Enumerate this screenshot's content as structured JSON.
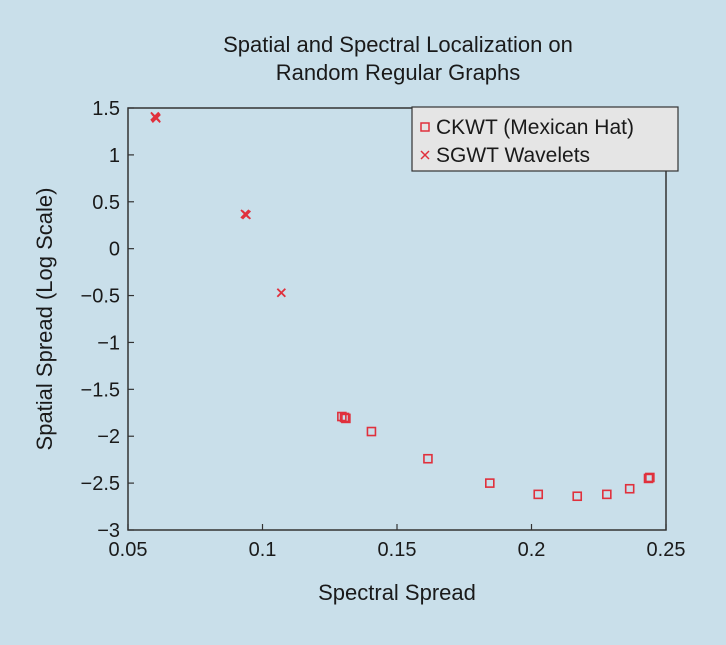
{
  "chart_data": {
    "type": "scatter",
    "title": [
      "Spatial and Spectral Localization on",
      "Random Regular Graphs"
    ],
    "xlabel": "Spectral Spread",
    "ylabel": "Spatial Spread (Log Scale)",
    "xlim": [
      0.05,
      0.25
    ],
    "ylim": [
      -3,
      1.5
    ],
    "x_ticks": [
      "0.05",
      "0.1",
      "0.15",
      "0.2",
      "0.25"
    ],
    "y_ticks": [
      "1.5",
      "1",
      "0.5",
      "0",
      "−0.5",
      "−1",
      "−1.5",
      "−2",
      "−2.5",
      "−3"
    ],
    "grid": false,
    "legend_position": "top-right",
    "series": [
      {
        "name": "CKWT (Mexican Hat)",
        "marker": "square",
        "color": "#e0303c",
        "points": [
          [
            0.1295,
            -1.79
          ],
          [
            0.1305,
            -1.8
          ],
          [
            0.131,
            -1.81
          ],
          [
            0.1405,
            -1.95
          ],
          [
            0.1615,
            -2.24
          ],
          [
            0.1845,
            -2.5
          ],
          [
            0.2025,
            -2.62
          ],
          [
            0.217,
            -2.64
          ],
          [
            0.228,
            -2.62
          ],
          [
            0.2365,
            -2.56
          ],
          [
            0.2435,
            -2.45
          ],
          [
            0.244,
            -2.44
          ]
        ]
      },
      {
        "name": "SGWT Wavelets",
        "marker": "x",
        "color": "#e0303c",
        "points": [
          [
            0.06,
            1.41
          ],
          [
            0.0605,
            1.39
          ],
          [
            0.0603,
            1.4
          ],
          [
            0.0935,
            0.37
          ],
          [
            0.094,
            0.36
          ],
          [
            0.107,
            -0.47
          ]
        ]
      }
    ]
  }
}
